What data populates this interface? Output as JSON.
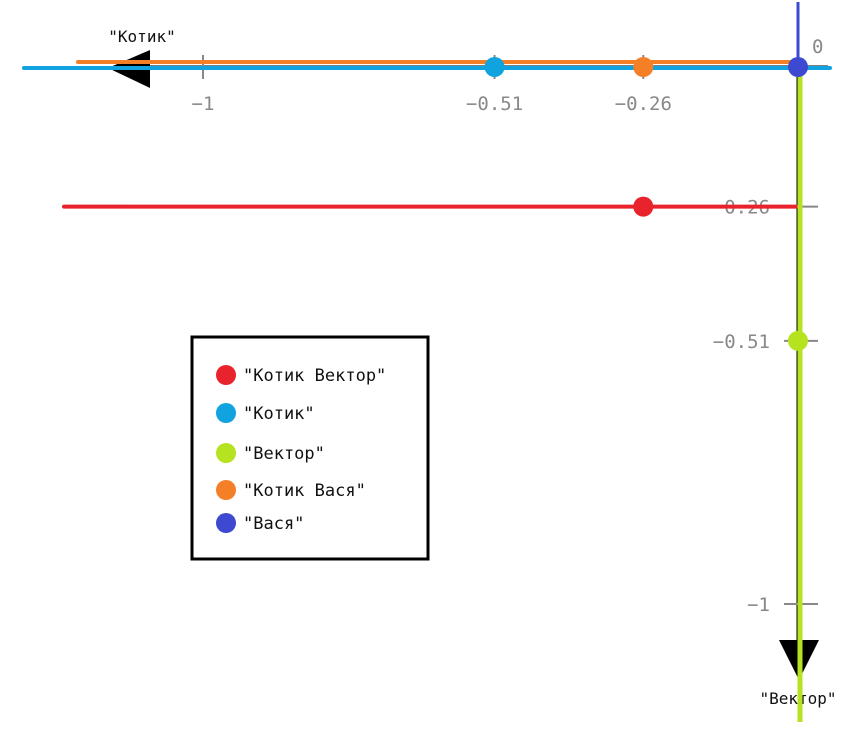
{
  "chart_data": {
    "type": "line",
    "axes": {
      "x": {
        "name": "\"Котик\"",
        "direction": "negative (arrow points left)",
        "ticks": [
          {
            "value": -1,
            "label": "−1"
          },
          {
            "value": -0.51,
            "label": "−0.51"
          },
          {
            "value": -0.26,
            "label": "−0.26"
          }
        ]
      },
      "y": {
        "name": "\"Вектор\"",
        "direction": "negative (arrow points down)",
        "ticks": [
          {
            "value": -0.26,
            "label": "−0.26"
          },
          {
            "value": -0.51,
            "label": "−0.51"
          },
          {
            "value": -1,
            "label": "−1"
          }
        ]
      },
      "origin_label": "0"
    },
    "series": [
      {
        "name": "\"Котик Вектор\"",
        "color": "#e8232b",
        "point": {
          "x": -0.26,
          "y": -0.26
        },
        "line": "horizontal"
      },
      {
        "name": "\"Котик\"",
        "color": "#11a3e0",
        "point": {
          "x": -0.51,
          "y": 0
        },
        "line": "horizontal"
      },
      {
        "name": "\"Вектор\"",
        "color": "#b5e320",
        "point": {
          "x": 0,
          "y": -0.51
        },
        "line": "vertical"
      },
      {
        "name": "\"Котик Вася\"",
        "color": "#f57f27",
        "point": {
          "x": -0.26,
          "y": 0
        },
        "line": "horizontal"
      },
      {
        "name": "\"Вася\"",
        "color": "#3e49d2",
        "point": {
          "x": 0,
          "y": 0
        },
        "line": "vertical"
      }
    ]
  }
}
